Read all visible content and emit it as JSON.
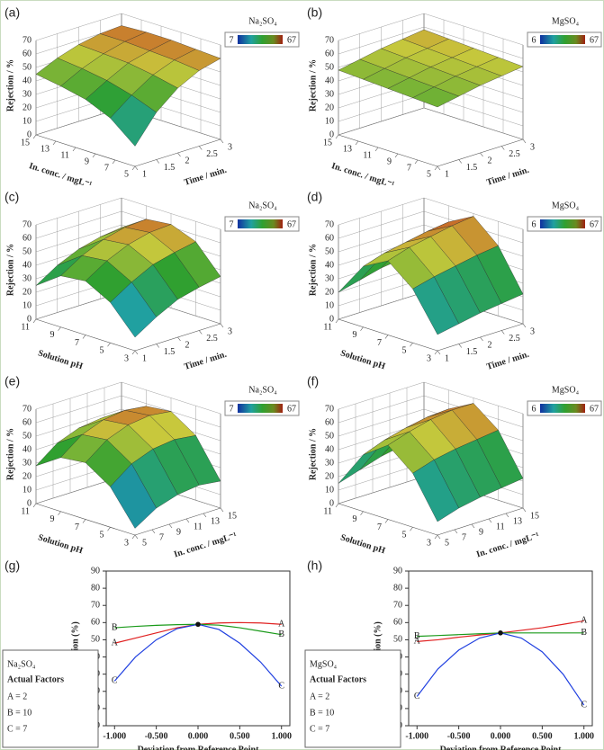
{
  "chart_data": [
    {
      "type": "surface",
      "label": "(a)",
      "legend_title": "Na₂SO₄",
      "colorbar": {
        "min": 7,
        "max": 67
      },
      "zlabel": "Rejection / %",
      "xlabel": "Time / min.",
      "ylabel": "In. conc. / mgL⁻¹",
      "xlim": [
        1,
        3
      ],
      "ylim": [
        5,
        15
      ],
      "zlim": [
        0,
        70
      ],
      "xticks": [
        1,
        1.5,
        2,
        2.5,
        3
      ],
      "yticks": [
        5,
        7,
        9,
        11,
        13,
        15
      ],
      "zticks": [
        0,
        10,
        20,
        30,
        40,
        50,
        60,
        70
      ],
      "x": [
        1,
        1.5,
        2,
        2.5,
        3
      ],
      "y": [
        5,
        7.5,
        10,
        12.5,
        15
      ],
      "z": [
        [
          15,
          35,
          48,
          56,
          60
        ],
        [
          30,
          42,
          52,
          58,
          61
        ],
        [
          38,
          47,
          55,
          59,
          62
        ],
        [
          42,
          50,
          56,
          60,
          62
        ],
        [
          45,
          52,
          57,
          60,
          61
        ]
      ]
    },
    {
      "type": "surface",
      "label": "(b)",
      "legend_title": "MgSO₄",
      "colorbar": {
        "min": 6,
        "max": 67
      },
      "zlabel": "Rejection / %",
      "xlabel": "Time / min.",
      "ylabel": "In. conc. / mgL⁻¹",
      "xlim": [
        1,
        3
      ],
      "ylim": [
        5,
        15
      ],
      "zlim": [
        0,
        70
      ],
      "xticks": [
        1,
        1.5,
        2,
        2.5,
        3
      ],
      "yticks": [
        5,
        7,
        9,
        11,
        13,
        15
      ],
      "zticks": [
        0,
        10,
        20,
        30,
        40,
        50,
        60,
        70
      ],
      "x": [
        1,
        1.5,
        2,
        2.5,
        3
      ],
      "y": [
        5,
        7.5,
        10,
        12.5,
        15
      ],
      "z": [
        [
          44,
          47,
          50,
          52,
          54
        ],
        [
          45,
          48,
          51,
          53,
          55
        ],
        [
          46,
          49,
          52,
          54,
          56
        ],
        [
          47,
          50,
          53,
          55,
          57
        ],
        [
          48,
          51,
          54,
          56,
          58
        ]
      ]
    },
    {
      "type": "surface",
      "label": "(c)",
      "legend_title": "Na₂SO₄",
      "colorbar": {
        "min": 7,
        "max": 67
      },
      "zlabel": "Rejection / %",
      "xlabel": "Time / min.",
      "ylabel": "Solution pH",
      "xlim": [
        1,
        3
      ],
      "ylim": [
        3,
        11
      ],
      "zlim": [
        0,
        70
      ],
      "xticks": [
        1,
        1.5,
        2,
        2.5,
        3
      ],
      "yticks": [
        3,
        5,
        7,
        9,
        11
      ],
      "zticks": [
        0,
        10,
        20,
        30,
        40,
        50,
        60,
        70
      ],
      "x": [
        1,
        1.5,
        2,
        2.5,
        3
      ],
      "y": [
        3,
        5,
        7,
        9,
        11
      ],
      "z": [
        [
          10,
          20,
          28,
          32,
          35
        ],
        [
          30,
          40,
          48,
          52,
          55
        ],
        [
          40,
          50,
          57,
          61,
          62
        ],
        [
          38,
          48,
          55,
          59,
          60
        ],
        [
          25,
          35,
          42,
          46,
          48
        ]
      ]
    },
    {
      "type": "surface",
      "label": "(d)",
      "legend_title": "MgSO₄",
      "colorbar": {
        "min": 6,
        "max": 67
      },
      "zlabel": "Rejection / %",
      "xlabel": "Time / min.",
      "ylabel": "Solution pH",
      "xlim": [
        1,
        3
      ],
      "ylim": [
        3,
        11
      ],
      "zlim": [
        0,
        70
      ],
      "xticks": [
        1,
        1.5,
        2,
        2.5,
        3
      ],
      "yticks": [
        3,
        5,
        7,
        9,
        11
      ],
      "zticks": [
        0,
        10,
        20,
        30,
        40,
        50,
        60,
        70
      ],
      "x": [
        1,
        1.5,
        2,
        2.5,
        3
      ],
      "y": [
        3,
        5,
        7,
        9,
        11
      ],
      "z": [
        [
          12,
          15,
          18,
          20,
          22
        ],
        [
          40,
          44,
          47,
          50,
          52
        ],
        [
          55,
          60,
          63,
          66,
          68
        ],
        [
          45,
          50,
          53,
          56,
          58
        ],
        [
          20,
          24,
          28,
          30,
          32
        ]
      ]
    },
    {
      "type": "surface",
      "label": "(e)",
      "legend_title": "Na₂SO₄",
      "colorbar": {
        "min": 7,
        "max": 67
      },
      "zlabel": "Rejection / %",
      "xlabel": "In. conc. / mgL⁻¹",
      "ylabel": "Solution pH",
      "xlim": [
        5,
        15
      ],
      "ylim": [
        3,
        11
      ],
      "zlim": [
        0,
        70
      ],
      "xticks": [
        5,
        7,
        9,
        11,
        13,
        15
      ],
      "yticks": [
        3,
        5,
        7,
        9,
        11
      ],
      "zticks": [
        0,
        10,
        20,
        30,
        40,
        50,
        60,
        70
      ],
      "x": [
        5,
        7.5,
        10,
        12.5,
        15
      ],
      "y": [
        3,
        5,
        7,
        9,
        11
      ],
      "z": [
        [
          5,
          15,
          20,
          22,
          20
        ],
        [
          30,
          42,
          48,
          50,
          48
        ],
        [
          42,
          54,
          60,
          62,
          60
        ],
        [
          40,
          52,
          58,
          60,
          58
        ],
        [
          28,
          40,
          46,
          48,
          46
        ]
      ]
    },
    {
      "type": "surface",
      "label": "(f)",
      "legend_title": "MgSO₄",
      "colorbar": {
        "min": 6,
        "max": 67
      },
      "zlabel": "Rejection / %",
      "xlabel": "In. conc. / mgL⁻¹",
      "ylabel": "Solution pH",
      "xlim": [
        5,
        15
      ],
      "ylim": [
        3,
        11
      ],
      "zlim": [
        0,
        70
      ],
      "xticks": [
        5,
        7,
        9,
        11,
        13,
        15
      ],
      "yticks": [
        3,
        5,
        7,
        9,
        11
      ],
      "zticks": [
        0,
        10,
        20,
        30,
        40,
        50,
        60,
        70
      ],
      "x": [
        5,
        7.5,
        10,
        12.5,
        15
      ],
      "y": [
        3,
        5,
        7,
        9,
        11
      ],
      "z": [
        [
          10,
          15,
          18,
          20,
          22
        ],
        [
          40,
          45,
          48,
          50,
          52
        ],
        [
          55,
          60,
          64,
          66,
          66
        ],
        [
          42,
          48,
          52,
          55,
          56
        ],
        [
          15,
          20,
          25,
          28,
          30
        ]
      ]
    },
    {
      "type": "line",
      "label": "(g)",
      "legend_title": "Na₂SO₄",
      "legend_subtitle": "Actual Factors",
      "factors": [
        "A = 2",
        "B = 10",
        "C = 7"
      ],
      "ylabel": "Rejection (%)",
      "xlabel": "Deviation from Reference Point",
      "xlim": [
        -1.1,
        1.1
      ],
      "ylim": [
        0,
        90
      ],
      "xticks": [
        {
          "value": -1,
          "label": "-1.000"
        },
        {
          "value": -0.5,
          "label": "-0.500"
        },
        {
          "value": 0,
          "label": "0.000"
        },
        {
          "value": 0.5,
          "label": "0.500"
        },
        {
          "value": 1,
          "label": "1.000"
        }
      ],
      "yticks": [
        0,
        10,
        20,
        30,
        40,
        50,
        60,
        70,
        80,
        90
      ],
      "x": [
        -1,
        -0.75,
        -0.5,
        -0.25,
        0,
        0.25,
        0.5,
        0.75,
        1
      ],
      "series": [
        {
          "name": "A",
          "color": "#e02020",
          "values": [
            48,
            51,
            54,
            57,
            59,
            59.8,
            60,
            59.8,
            59
          ]
        },
        {
          "name": "B",
          "color": "#1a9a1a",
          "values": [
            57,
            57.8,
            58.4,
            58.8,
            59,
            58.5,
            57,
            55,
            53
          ]
        },
        {
          "name": "C",
          "color": "#2040e0",
          "values": [
            26,
            40,
            50,
            56.5,
            59,
            56,
            48,
            37,
            23
          ]
        }
      ]
    },
    {
      "type": "line",
      "label": "(h)",
      "legend_title": "MgSO₄",
      "legend_subtitle": "Actual Factors",
      "factors": [
        "A = 2",
        "B = 10",
        "C = 7"
      ],
      "ylabel": "Rejection (%)",
      "xlabel": "Deviation from Reference Point",
      "xlim": [
        -1.1,
        1.1
      ],
      "ylim": [
        0,
        90
      ],
      "xticks": [
        {
          "value": -1,
          "label": "-1.000"
        },
        {
          "value": -0.5,
          "label": "-0.500"
        },
        {
          "value": 0,
          "label": "0.000"
        },
        {
          "value": 0.5,
          "label": "0.500"
        },
        {
          "value": 1,
          "label": "1.000"
        }
      ],
      "yticks": [
        0,
        10,
        20,
        30,
        40,
        50,
        60,
        70,
        80,
        90
      ],
      "x": [
        -1,
        -0.75,
        -0.5,
        -0.25,
        0,
        0.25,
        0.5,
        0.75,
        1
      ],
      "series": [
        {
          "name": "A",
          "color": "#e02020",
          "values": [
            49,
            50,
            51.5,
            52.8,
            54,
            55.5,
            57,
            59,
            61
          ]
        },
        {
          "name": "B",
          "color": "#1a9a1a",
          "values": [
            52,
            52.5,
            53,
            53.5,
            54,
            54,
            54,
            54,
            54
          ]
        },
        {
          "name": "C",
          "color": "#2040e0",
          "values": [
            17,
            33,
            44,
            51,
            54,
            51,
            43,
            30,
            12
          ]
        }
      ]
    }
  ]
}
